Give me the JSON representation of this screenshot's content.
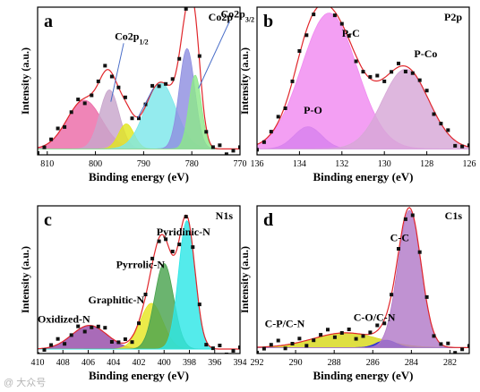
{
  "watermark": "@ 大众号",
  "chart_data": [
    {
      "id": "a",
      "type": "line",
      "panel_label": "a",
      "title": "Co2p",
      "xlabel": "Binding energy (eV)",
      "ylabel": "Intensity (a.u.)",
      "xlim": [
        812,
        770
      ],
      "xticks": [
        810,
        800,
        790,
        780,
        770
      ],
      "baseline": 0.04,
      "peaks": [
        {
          "name": "",
          "center": 802.3,
          "width": 3.6,
          "height": 0.33,
          "color": "#ec6aa7"
        },
        {
          "name": "",
          "center": 797.1,
          "width": 2.0,
          "height": 0.4,
          "color": "#c8a6cc"
        },
        {
          "name": "",
          "center": 793.6,
          "width": 1.6,
          "height": 0.17,
          "color": "#e2e61e"
        },
        {
          "name": "",
          "center": 786.5,
          "width": 3.2,
          "height": 0.45,
          "color": "#7ce6ea"
        },
        {
          "name": "",
          "center": 781.0,
          "width": 1.6,
          "height": 0.68,
          "color": "#8f8fe0"
        },
        {
          "name": "",
          "center": 779.3,
          "width": 1.3,
          "height": 0.5,
          "color": "#8ee88a"
        }
      ],
      "annotations": [
        {
          "text": "Co2p",
          "sub": "1/2",
          "x": 796,
          "y": 0.78,
          "arrow_to": [
            796.8,
            0.36
          ]
        },
        {
          "text": "Co2p",
          "sub": "3/2",
          "x": 774,
          "y": 0.93,
          "arrow_to": [
            778.6,
            0.45
          ]
        }
      ],
      "extra_arrow": {
        "from": [
          788,
          0.45
        ],
        "to": [
          791.2,
          0.25
        ]
      }
    },
    {
      "id": "b",
      "type": "line",
      "panel_label": "b",
      "title": "P2p",
      "xlabel": "Binding energy (eV)",
      "ylabel": "Intensity (a.u.)",
      "xlim": [
        136,
        126
      ],
      "xticks": [
        136,
        134,
        132,
        130,
        128,
        126
      ],
      "baseline": 0.04,
      "peaks": [
        {
          "name": "P-O",
          "center": 133.6,
          "width": 0.65,
          "height": 0.15,
          "color": "#6d5ee0"
        },
        {
          "name": "P-C",
          "center": 132.6,
          "width": 1.3,
          "height": 0.92,
          "color": "#f08af0"
        },
        {
          "name": "P-Co",
          "center": 129.0,
          "width": 1.1,
          "height": 0.54,
          "color": "#d7a7d7"
        }
      ],
      "annotations": [
        {
          "text": "P-C",
          "x": 132.0,
          "y": 0.8
        },
        {
          "text": "P-Co",
          "x": 128.6,
          "y": 0.66
        },
        {
          "text": "P-O",
          "x": 133.8,
          "y": 0.28
        }
      ]
    },
    {
      "id": "c",
      "type": "line",
      "panel_label": "c",
      "title": "N1s",
      "xlabel": "Binding energy (eV)",
      "ylabel": "Intensity (a.u.)",
      "xlim": [
        410,
        394
      ],
      "xticks": [
        410,
        408,
        406,
        404,
        402,
        400,
        398,
        396,
        394
      ],
      "baseline": 0.03,
      "peaks": [
        {
          "name": "Oxidized-N",
          "center": 405.9,
          "width": 1.4,
          "height": 0.16,
          "color": "#964aa8"
        },
        {
          "name": "Graphitic-N",
          "center": 401.0,
          "width": 0.9,
          "height": 0.31,
          "color": "#e6e622"
        },
        {
          "name": "Pyrrolic-N",
          "center": 400.0,
          "width": 0.75,
          "height": 0.58,
          "color": "#4aa34f"
        },
        {
          "name": "Pyridinic-N",
          "center": 398.2,
          "width": 0.65,
          "height": 0.87,
          "color": "#2ee6e6"
        }
      ],
      "annotations": [
        {
          "text": "Pyridinic-N",
          "x": 400.6,
          "y": 0.8
        },
        {
          "text": "Pyrrolic-N",
          "x": 403.8,
          "y": 0.58
        },
        {
          "text": "Graphitic-N",
          "x": 406.0,
          "y": 0.34
        },
        {
          "text": "Oxidized-N",
          "x": 410.0,
          "y": 0.21
        }
      ]
    },
    {
      "id": "d",
      "type": "line",
      "panel_label": "d",
      "title": "C1s",
      "xlabel": "Binding energy (eV)",
      "ylabel": "Intensity (a.u.)",
      "xlim": [
        292,
        281
      ],
      "xticks": [
        292,
        290,
        288,
        286,
        284,
        282
      ],
      "baseline": 0.04,
      "peaks": [
        {
          "name": "C-P/C-N",
          "center": 287.4,
          "width": 1.7,
          "height": 0.1,
          "color": "#d8d81a"
        },
        {
          "name": "C-O/C-N",
          "center": 285.3,
          "width": 0.5,
          "height": 0.05,
          "color": "#2323e6"
        },
        {
          "name": "C-C",
          "center": 284.1,
          "width": 0.6,
          "height": 0.93,
          "color": "#b27ac8"
        }
      ],
      "annotations": [
        {
          "text": "C-C",
          "x": 285.1,
          "y": 0.76
        },
        {
          "text": "C-O/C-N",
          "x": 287.0,
          "y": 0.22
        },
        {
          "text": "C-P/C-N",
          "x": 291.6,
          "y": 0.18
        }
      ]
    }
  ]
}
